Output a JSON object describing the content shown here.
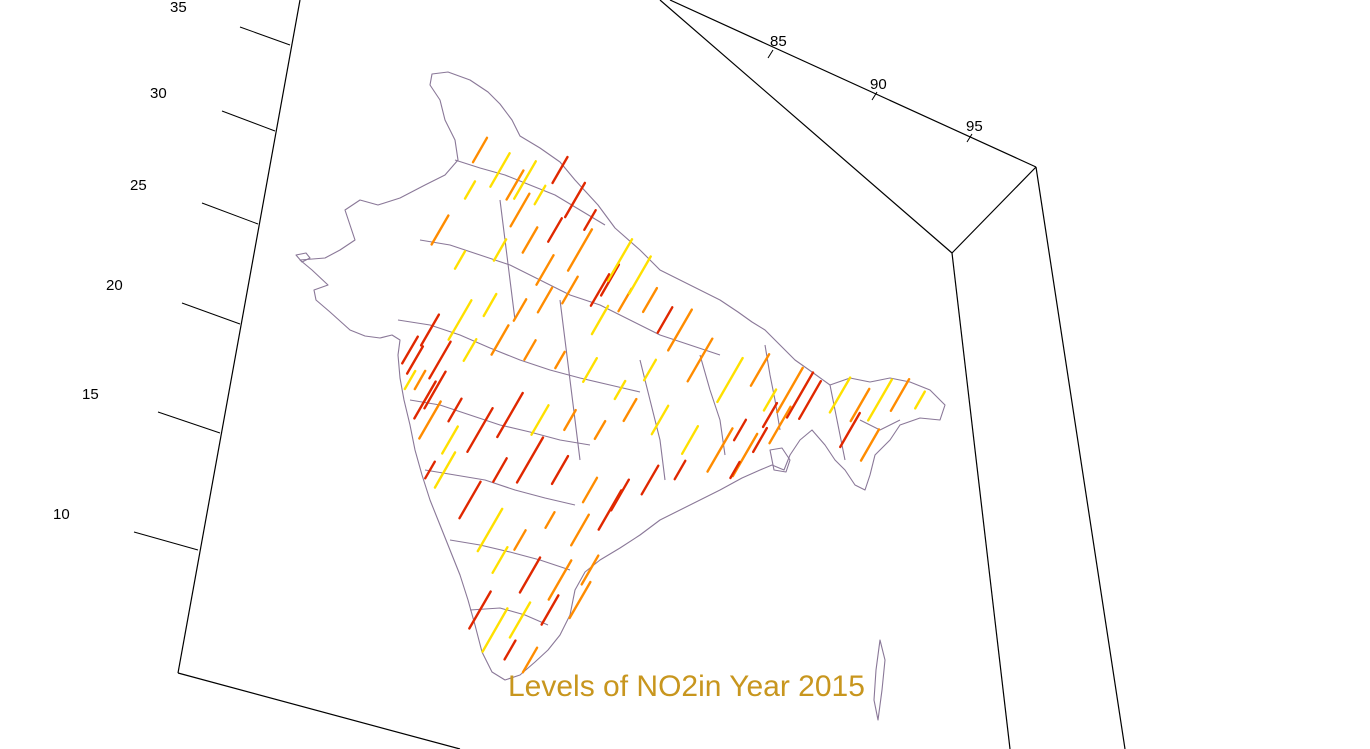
{
  "title": "Levels of NO2in Year 2015",
  "colors": {
    "title": "#C8961E",
    "box": "#000000",
    "outline": "#8A7898",
    "low": "#FFE000",
    "mid": "#FF8C00",
    "high": "#E02800"
  },
  "axes": {
    "latitude_ticks": [
      "35",
      "30",
      "25",
      "20",
      "15",
      "10"
    ],
    "longitude_ticks": [
      "85",
      "90",
      "95"
    ]
  }
}
